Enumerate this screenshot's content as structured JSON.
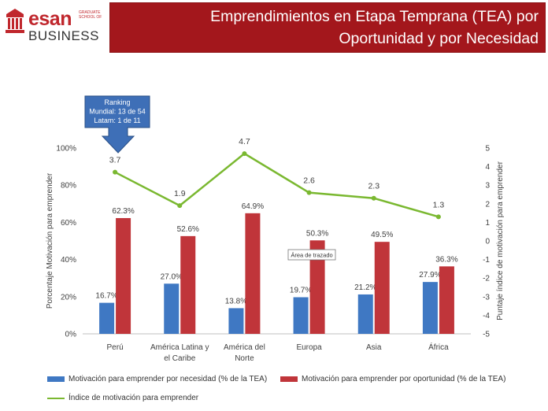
{
  "header": {
    "logo_esan": "esan",
    "logo_grad": "GRADUATE SCHOOL OF",
    "logo_business": "BUSINESS",
    "title_line1": "Emprendimientos en Etapa Temprana (TEA) por",
    "title_line2": "Oportunidad y por Necesidad"
  },
  "colors": {
    "banner": "#a3171c",
    "necesidad": "#3f78c3",
    "oportunidad": "#c0353a",
    "indice": "#7ab830",
    "callout": "#3e6fb7"
  },
  "callout": {
    "line1": "Ranking",
    "line2": "Mundial: 13 de 54",
    "line3": "Latam: 1 de 11"
  },
  "tooltip": "Área de trazado",
  "chart_data": {
    "type": "bar",
    "categories": [
      "Perú",
      "América Latina y el Caribe",
      "América del Norte",
      "Europa",
      "Asia",
      "África"
    ],
    "category_lines": [
      [
        "Perú"
      ],
      [
        "América Latina y",
        "el Caribe"
      ],
      [
        "América del",
        "Norte"
      ],
      [
        "Europa"
      ],
      [
        "Asia"
      ],
      [
        "África"
      ]
    ],
    "series": [
      {
        "name": "Motivación para emprender por necesidad (% de la TEA)",
        "type": "bar",
        "axis": "left",
        "values": [
          16.7,
          27.0,
          13.8,
          19.7,
          21.2,
          27.9
        ],
        "labels": [
          "16.7%",
          "27.0%",
          "13.8%",
          "19.7%",
          "21.2%",
          "27.9%"
        ]
      },
      {
        "name": "Motivación para emprender por oportunidad (% de la TEA)",
        "type": "bar",
        "axis": "left",
        "values": [
          62.3,
          52.6,
          64.9,
          50.3,
          49.5,
          36.3
        ],
        "labels": [
          "62.3%",
          "52.6%",
          "64.9%",
          "50.3%",
          "49.5%",
          "36.3%"
        ]
      },
      {
        "name": "Índice de motivación para emprender",
        "type": "line",
        "axis": "right",
        "values": [
          3.7,
          1.9,
          4.7,
          2.6,
          2.3,
          1.3
        ],
        "labels": [
          "3.7",
          "1.9",
          "4.7",
          "2.6",
          "2.3",
          "1.3"
        ]
      }
    ],
    "ylabel": "Porcentaje Motivación para emprender",
    "ylabel_right": "Puntaje índice de motivación para emprender",
    "ylim": [
      0,
      100
    ],
    "ylim_right": [
      -5,
      5
    ],
    "yticks": [
      "0%",
      "20%",
      "40%",
      "60%",
      "80%",
      "100%"
    ],
    "yticks_right": [
      "-5",
      "-4",
      "-3",
      "-2",
      "-1",
      "0",
      "1",
      "2",
      "3",
      "4",
      "5"
    ],
    "legend_position": "bottom"
  }
}
